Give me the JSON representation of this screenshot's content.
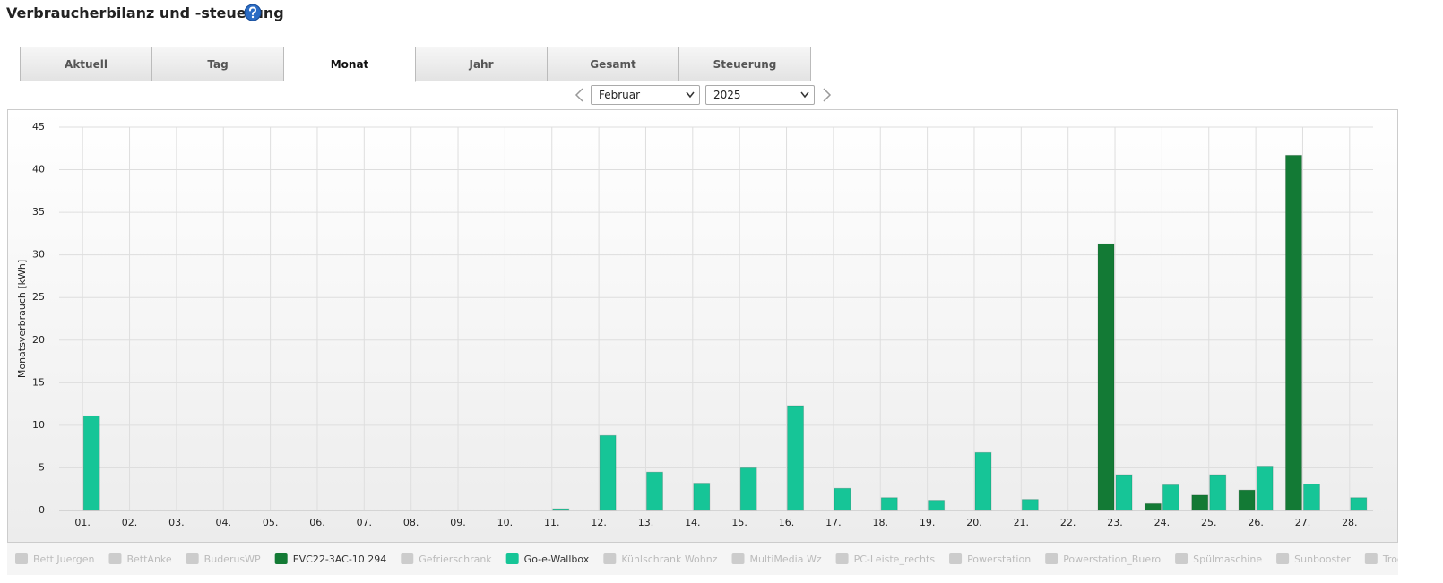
{
  "header": {
    "title": "Verbraucherbilanz und -steuerung"
  },
  "tabs": [
    "Aktuell",
    "Tag",
    "Monat",
    "Jahr",
    "Gesamt",
    "Steuerung"
  ],
  "active_tab": 2,
  "selects": {
    "month": "Februar",
    "year": "2025"
  },
  "chart_data": {
    "type": "bar",
    "ylabel": "Monatsverbrauch [kWh]",
    "categories": [
      "01.",
      "02.",
      "03.",
      "04.",
      "05.",
      "06.",
      "07.",
      "08.",
      "09.",
      "10.",
      "11.",
      "12.",
      "13.",
      "14.",
      "15.",
      "16.",
      "17.",
      "18.",
      "19.",
      "20.",
      "21.",
      "22.",
      "23.",
      "24.",
      "25.",
      "26.",
      "27.",
      "28."
    ],
    "ylim": [
      0,
      45
    ],
    "yticks": [
      0,
      5,
      10,
      15,
      20,
      25,
      30,
      35,
      40,
      45
    ],
    "grid": true,
    "hidden_color": "#cccccc",
    "series": [
      {
        "name": "Bett Juergen",
        "hidden": true,
        "values": [
          null,
          null,
          null,
          null,
          null,
          null,
          null,
          null,
          null,
          null,
          null,
          null,
          null,
          null,
          null,
          null,
          null,
          null,
          null,
          null,
          null,
          null,
          null,
          null,
          null,
          null,
          null,
          null
        ]
      },
      {
        "name": "BettAnke",
        "hidden": true,
        "values": [
          null,
          null,
          null,
          null,
          null,
          null,
          null,
          null,
          null,
          null,
          null,
          null,
          null,
          null,
          null,
          null,
          null,
          null,
          null,
          null,
          null,
          null,
          null,
          null,
          null,
          null,
          null,
          null
        ]
      },
      {
        "name": "BuderusWP",
        "hidden": true,
        "values": [
          null,
          null,
          null,
          null,
          null,
          null,
          null,
          null,
          null,
          null,
          null,
          null,
          null,
          null,
          null,
          null,
          null,
          null,
          null,
          null,
          null,
          null,
          null,
          null,
          null,
          null,
          null,
          null
        ]
      },
      {
        "name": "EVC22-3AC-10 294",
        "color": "#137a35",
        "values": [
          null,
          null,
          null,
          null,
          null,
          null,
          null,
          null,
          null,
          null,
          null,
          null,
          null,
          null,
          null,
          null,
          null,
          null,
          null,
          null,
          null,
          null,
          31.3,
          0.8,
          1.8,
          2.4,
          41.7,
          null
        ]
      },
      {
        "name": "Gefrierschrank",
        "hidden": true,
        "values": [
          null,
          null,
          null,
          null,
          null,
          null,
          null,
          null,
          null,
          null,
          null,
          null,
          null,
          null,
          null,
          null,
          null,
          null,
          null,
          null,
          null,
          null,
          null,
          null,
          null,
          null,
          null,
          null
        ]
      },
      {
        "name": "Go-e-Wallbox",
        "color": "#16c597",
        "values": [
          11.1,
          null,
          null,
          null,
          null,
          null,
          null,
          null,
          null,
          null,
          0.2,
          8.8,
          4.5,
          3.2,
          5.0,
          12.3,
          2.6,
          1.5,
          1.2,
          6.8,
          1.3,
          null,
          4.2,
          3.0,
          4.2,
          5.2,
          3.1,
          1.5
        ]
      },
      {
        "name": "Kühlschrank Wohnz",
        "hidden": true,
        "values": [
          null,
          null,
          null,
          null,
          null,
          null,
          null,
          null,
          null,
          null,
          null,
          null,
          null,
          null,
          null,
          null,
          null,
          null,
          null,
          null,
          null,
          null,
          null,
          null,
          null,
          null,
          null,
          null
        ]
      },
      {
        "name": "MultiMedia Wz",
        "hidden": true,
        "values": [
          null,
          null,
          null,
          null,
          null,
          null,
          null,
          null,
          null,
          null,
          null,
          null,
          null,
          null,
          null,
          null,
          null,
          null,
          null,
          null,
          null,
          null,
          null,
          null,
          null,
          null,
          null,
          null
        ]
      },
      {
        "name": "PC-Leiste_rechts",
        "hidden": true,
        "values": [
          null,
          null,
          null,
          null,
          null,
          null,
          null,
          null,
          null,
          null,
          null,
          null,
          null,
          null,
          null,
          null,
          null,
          null,
          null,
          null,
          null,
          null,
          null,
          null,
          null,
          null,
          null,
          null
        ]
      },
      {
        "name": "Powerstation",
        "hidden": true,
        "values": [
          null,
          null,
          null,
          null,
          null,
          null,
          null,
          null,
          null,
          null,
          null,
          null,
          null,
          null,
          null,
          null,
          null,
          null,
          null,
          null,
          null,
          null,
          null,
          null,
          null,
          null,
          null,
          null
        ]
      },
      {
        "name": "Powerstation_Buero",
        "hidden": true,
        "values": [
          null,
          null,
          null,
          null,
          null,
          null,
          null,
          null,
          null,
          null,
          null,
          null,
          null,
          null,
          null,
          null,
          null,
          null,
          null,
          null,
          null,
          null,
          null,
          null,
          null,
          null,
          null,
          null
        ]
      },
      {
        "name": "Spülmaschine",
        "hidden": true,
        "values": [
          null,
          null,
          null,
          null,
          null,
          null,
          null,
          null,
          null,
          null,
          null,
          null,
          null,
          null,
          null,
          null,
          null,
          null,
          null,
          null,
          null,
          null,
          null,
          null,
          null,
          null,
          null,
          null
        ]
      },
      {
        "name": "Sunbooster",
        "hidden": true,
        "values": [
          null,
          null,
          null,
          null,
          null,
          null,
          null,
          null,
          null,
          null,
          null,
          null,
          null,
          null,
          null,
          null,
          null,
          null,
          null,
          null,
          null,
          null,
          null,
          null,
          null,
          null,
          null,
          null
        ]
      },
      {
        "name": "Trockner",
        "hidden": true,
        "values": [
          null,
          null,
          null,
          null,
          null,
          null,
          null,
          null,
          null,
          null,
          null,
          null,
          null,
          null,
          null,
          null,
          null,
          null,
          null,
          null,
          null,
          null,
          null,
          null,
          null,
          null,
          null,
          null
        ]
      }
    ]
  }
}
